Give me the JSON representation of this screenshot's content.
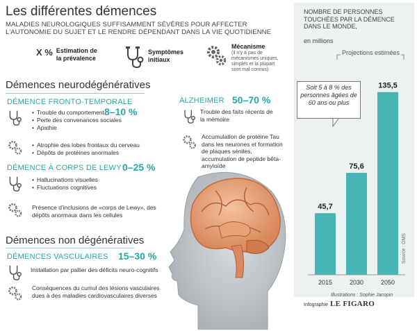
{
  "title": "Les différentes démences",
  "subtitle": "MALADIES NEUROLOGIQUES SUFFISAMMENT SÉVÈRES POUR AFFECTER L'AUTONOMIE DU SUJET ET LE RENDRE DÉPENDANT DANS LA VIE QUOTIDIENNE",
  "legend": {
    "prevalence_symbol": "X %",
    "prevalence_label": "Estimation de la prévalence",
    "symptoms_label": "Symptômes initiaux",
    "symptoms_icon": "stethoscope-icon",
    "mechanism_label": "Mécanisme",
    "mechanism_icon": "gears-icon",
    "mechanism_note": "(il n'y a pas de mécanismes uniques, simples et la plupart sont mal connus)"
  },
  "neuro": {
    "heading": "Démences neurodégénératives",
    "ftd": {
      "name": "DÉMENCE FRONTO-TEMPORALE",
      "pct": "8–10 %",
      "symptoms": [
        "Trouble du comportement",
        "Perte des convenances sociales",
        "Apathie"
      ],
      "mechanism": [
        "Atrophie des lobes frontaux du cerveau",
        "Dépôts de protéines anormales"
      ]
    },
    "lewy": {
      "name": "DÉMENCE À CORPS DE LEWY",
      "pct": "0–25 %",
      "symptoms": [
        "Hallucinations visuelles",
        "Fluctuations cognitives"
      ],
      "mechanism": "Présence d'inclusions de «corps de Lewy», des dépôts anormaux dans les cellules"
    },
    "alz": {
      "name": "ALZHEIMER",
      "pct": "50–70 %",
      "symptom": "Trouble des faits récents de la mémoire",
      "mechanism": "Accumulation de protéine Tau dans les neurones et formation de plaques séniles, accumulation de peptide bêta-amyloïde"
    }
  },
  "nonneuro": {
    "heading": "Démences non dégénératives",
    "vasc": {
      "name": "DÉMENCES VASCULAIRES",
      "pct": "15–30 %",
      "symptom": "Installation par pallier des déficits neuro-cognitifs",
      "mechanism": "Conséquences du cumul des lésions vasculaires dues à des maladies cardiovasculaires diverses"
    }
  },
  "panel": {
    "title": "NOMBRE DE PERSONNES TOUCHÉES PAR LA DÉMENCE DANS LE MONDE,",
    "unit": "en millions",
    "projection_label": "Projections estimées",
    "callout": "Soit 5 à 8 % des personnes âgées de 60 ans ou plus",
    "source": "Source : OMS",
    "credit": "Illustrations : Sophie Jacopin",
    "brand_prefix": "Infographie",
    "brand_name": "LE FIGARO"
  },
  "colors": {
    "accent": "#2aa6a6",
    "bar": "#45b5b5",
    "panel": "#eef1f2"
  },
  "chart_data": {
    "type": "bar",
    "title": "NOMBRE DE PERSONNES TOUCHÉES PAR LA DÉMENCE DANS LE MONDE, en millions",
    "categories": [
      "2015",
      "2030",
      "2050"
    ],
    "values": [
      45.7,
      75.6,
      135.5
    ],
    "value_labels": [
      "45,7",
      "75,6",
      "135,5"
    ],
    "ylim": [
      0,
      140
    ],
    "grid": false,
    "axis_values_shown": false
  }
}
